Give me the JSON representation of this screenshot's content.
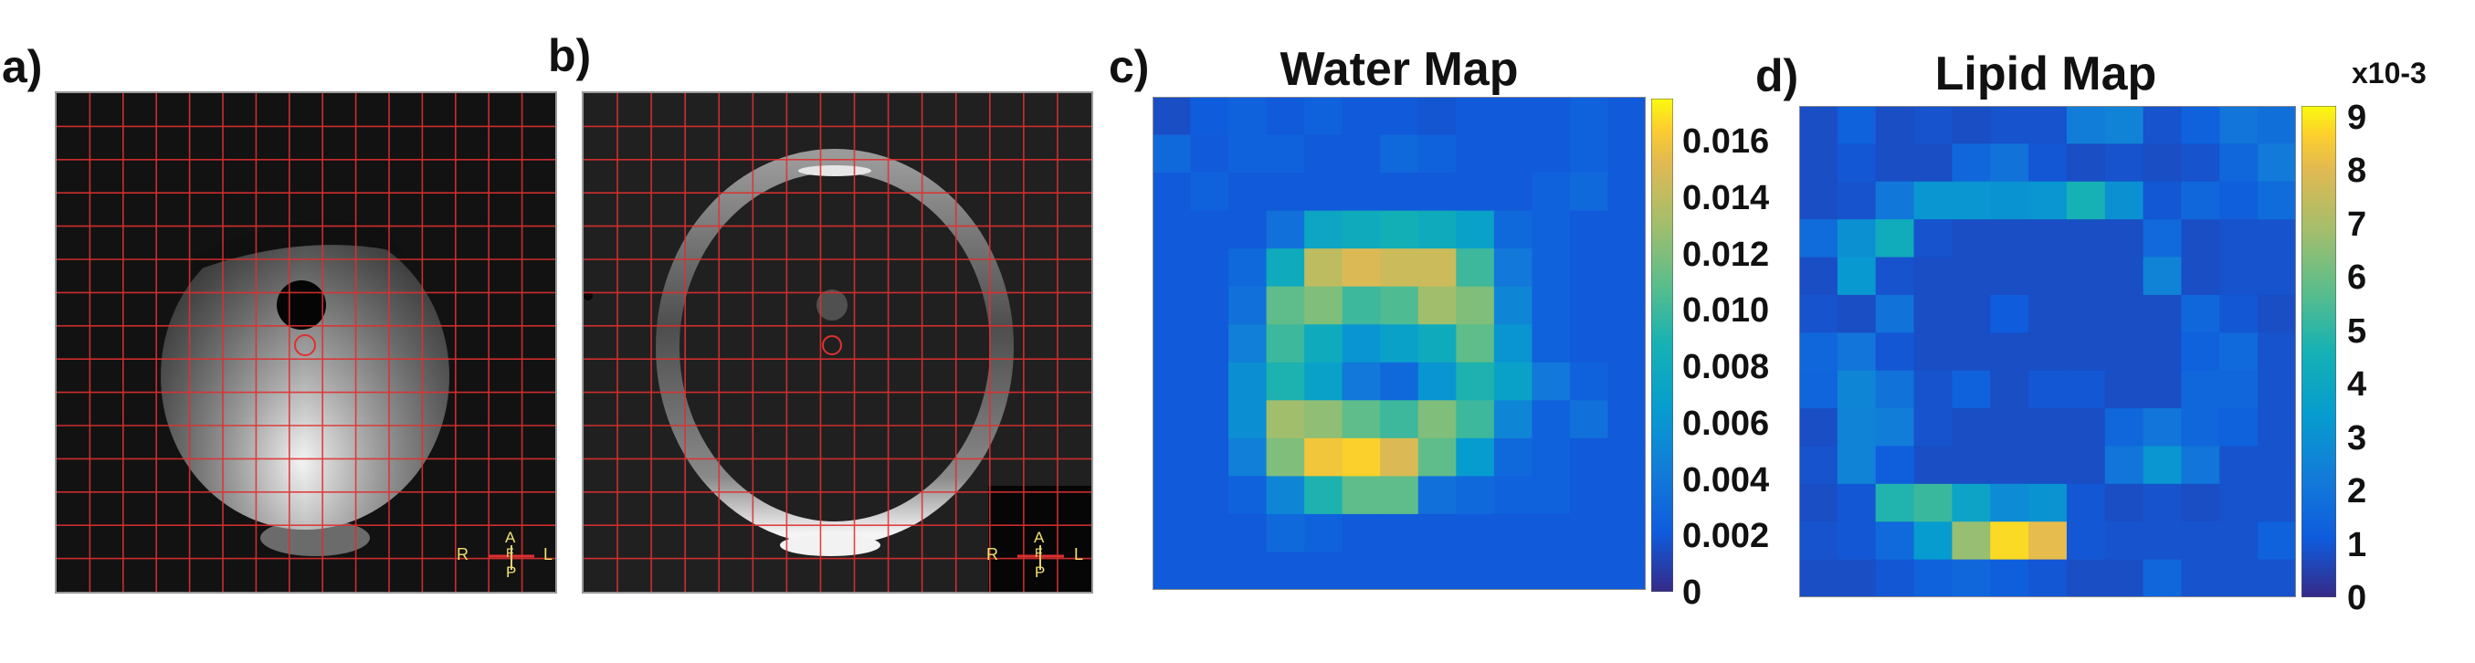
{
  "panels": {
    "a": {
      "label": "a)",
      "orientation": {
        "left": "R",
        "right": "L",
        "top": "A",
        "center": "F",
        "bottom": "P"
      }
    },
    "b": {
      "label": "b)",
      "orientation": {
        "left": "R",
        "right": "L",
        "top": "A",
        "center": "F",
        "bottom": "P"
      }
    },
    "c": {
      "label": "c)",
      "title": "Water Map"
    },
    "d": {
      "label": "d)",
      "title": "Lipid Map"
    }
  },
  "colors": {
    "grid": "#e03030",
    "colormap": "parula"
  },
  "water_map": {
    "colorbar_ticks": [
      "0.016",
      "0.014",
      "0.012",
      "0.010",
      "0.008",
      "0.006",
      "0.004",
      "0.002",
      "0"
    ],
    "range": [
      0,
      0.0175
    ],
    "grid": [
      [
        0.0015,
        0.0022,
        0.0025,
        0.002,
        0.0025,
        0.002,
        0.002,
        0.0018,
        0.002,
        0.002,
        0.002,
        0.0025,
        0.002
      ],
      [
        0.003,
        0.002,
        0.0025,
        0.0025,
        0.002,
        0.002,
        0.003,
        0.0025,
        0.002,
        0.002,
        0.002,
        0.0025,
        0.002
      ],
      [
        0.002,
        0.0025,
        0.002,
        0.002,
        0.002,
        0.002,
        0.002,
        0.002,
        0.002,
        0.002,
        0.0025,
        0.003,
        0.002
      ],
      [
        0.002,
        0.002,
        0.002,
        0.0035,
        0.0075,
        0.008,
        0.0085,
        0.008,
        0.007,
        0.003,
        0.0025,
        0.002,
        0.002
      ],
      [
        0.002,
        0.002,
        0.003,
        0.008,
        0.014,
        0.015,
        0.0145,
        0.0145,
        0.01,
        0.004,
        0.0025,
        0.002,
        0.002
      ],
      [
        0.002,
        0.002,
        0.0035,
        0.011,
        0.012,
        0.01,
        0.0105,
        0.013,
        0.012,
        0.005,
        0.0025,
        0.002,
        0.002
      ],
      [
        0.002,
        0.002,
        0.0045,
        0.01,
        0.008,
        0.006,
        0.007,
        0.008,
        0.011,
        0.006,
        0.0025,
        0.002,
        0.002
      ],
      [
        0.002,
        0.002,
        0.0055,
        0.009,
        0.007,
        0.004,
        0.003,
        0.006,
        0.009,
        0.007,
        0.004,
        0.0025,
        0.002
      ],
      [
        0.002,
        0.002,
        0.0055,
        0.013,
        0.0125,
        0.011,
        0.01,
        0.012,
        0.01,
        0.005,
        0.0025,
        0.0035,
        0.002
      ],
      [
        0.002,
        0.002,
        0.0045,
        0.012,
        0.016,
        0.0165,
        0.015,
        0.011,
        0.0065,
        0.003,
        0.0025,
        0.002,
        0.002
      ],
      [
        0.002,
        0.002,
        0.0025,
        0.005,
        0.009,
        0.011,
        0.011,
        0.0035,
        0.003,
        0.0025,
        0.0025,
        0.002,
        0.002
      ],
      [
        0.002,
        0.002,
        0.002,
        0.003,
        0.0025,
        0.002,
        0.002,
        0.002,
        0.002,
        0.002,
        0.002,
        0.002,
        0.002
      ],
      [
        0.002,
        0.002,
        0.002,
        0.002,
        0.002,
        0.002,
        0.002,
        0.002,
        0.002,
        0.002,
        0.002,
        0.002,
        0.002
      ]
    ]
  },
  "lipid_map": {
    "colorbar_exponent": "x10-3",
    "colorbar_ticks": [
      "9",
      "8",
      "7",
      "6",
      "5",
      "4",
      "3",
      "2",
      "1",
      "0"
    ],
    "range": [
      0,
      9.2
    ],
    "grid": [
      [
        0.8,
        1.3,
        0.8,
        0.9,
        0.8,
        0.9,
        0.9,
        2.3,
        2.5,
        0.9,
        1.3,
        2.0,
        1.8
      ],
      [
        0.8,
        1.0,
        0.8,
        0.8,
        1.5,
        1.9,
        1.0,
        0.8,
        0.9,
        0.8,
        0.9,
        1.5,
        2.2
      ],
      [
        0.8,
        0.9,
        2.1,
        3.2,
        3.2,
        3.1,
        3.2,
        4.6,
        3.0,
        1.0,
        1.5,
        1.2,
        1.7
      ],
      [
        1.7,
        3.0,
        4.3,
        0.9,
        0.8,
        0.8,
        0.8,
        0.8,
        0.8,
        1.6,
        0.8,
        0.9,
        0.9
      ],
      [
        0.8,
        3.3,
        0.9,
        0.8,
        0.8,
        0.8,
        0.8,
        0.8,
        0.8,
        2.5,
        0.8,
        0.9,
        0.9
      ],
      [
        0.9,
        0.8,
        1.9,
        0.8,
        0.8,
        1.1,
        0.8,
        0.8,
        0.8,
        0.8,
        1.5,
        1.0,
        0.8
      ],
      [
        1.5,
        2.0,
        1.0,
        0.8,
        0.8,
        0.8,
        0.8,
        0.8,
        0.8,
        0.8,
        1.3,
        1.6,
        0.9
      ],
      [
        1.4,
        2.6,
        1.9,
        0.9,
        1.3,
        0.8,
        1.0,
        1.0,
        0.8,
        0.8,
        1.5,
        1.5,
        0.9
      ],
      [
        0.8,
        2.5,
        2.3,
        0.9,
        0.8,
        0.8,
        0.8,
        0.8,
        1.5,
        2.0,
        1.5,
        1.3,
        0.9
      ],
      [
        0.9,
        2.5,
        1.2,
        0.8,
        0.8,
        0.8,
        0.8,
        0.8,
        2.0,
        3.2,
        2.0,
        0.9,
        0.9
      ],
      [
        0.8,
        1.0,
        4.8,
        5.2,
        3.8,
        2.8,
        3.1,
        1.0,
        0.8,
        0.9,
        0.8,
        0.9,
        0.9
      ],
      [
        0.9,
        1.0,
        1.6,
        3.4,
        6.7,
        8.8,
        8.1,
        1.0,
        0.9,
        0.9,
        0.9,
        0.9,
        1.3
      ],
      [
        0.8,
        0.8,
        1.0,
        1.3,
        1.5,
        1.2,
        1.0,
        0.8,
        0.8,
        1.5,
        0.9,
        0.9,
        0.9
      ]
    ]
  }
}
